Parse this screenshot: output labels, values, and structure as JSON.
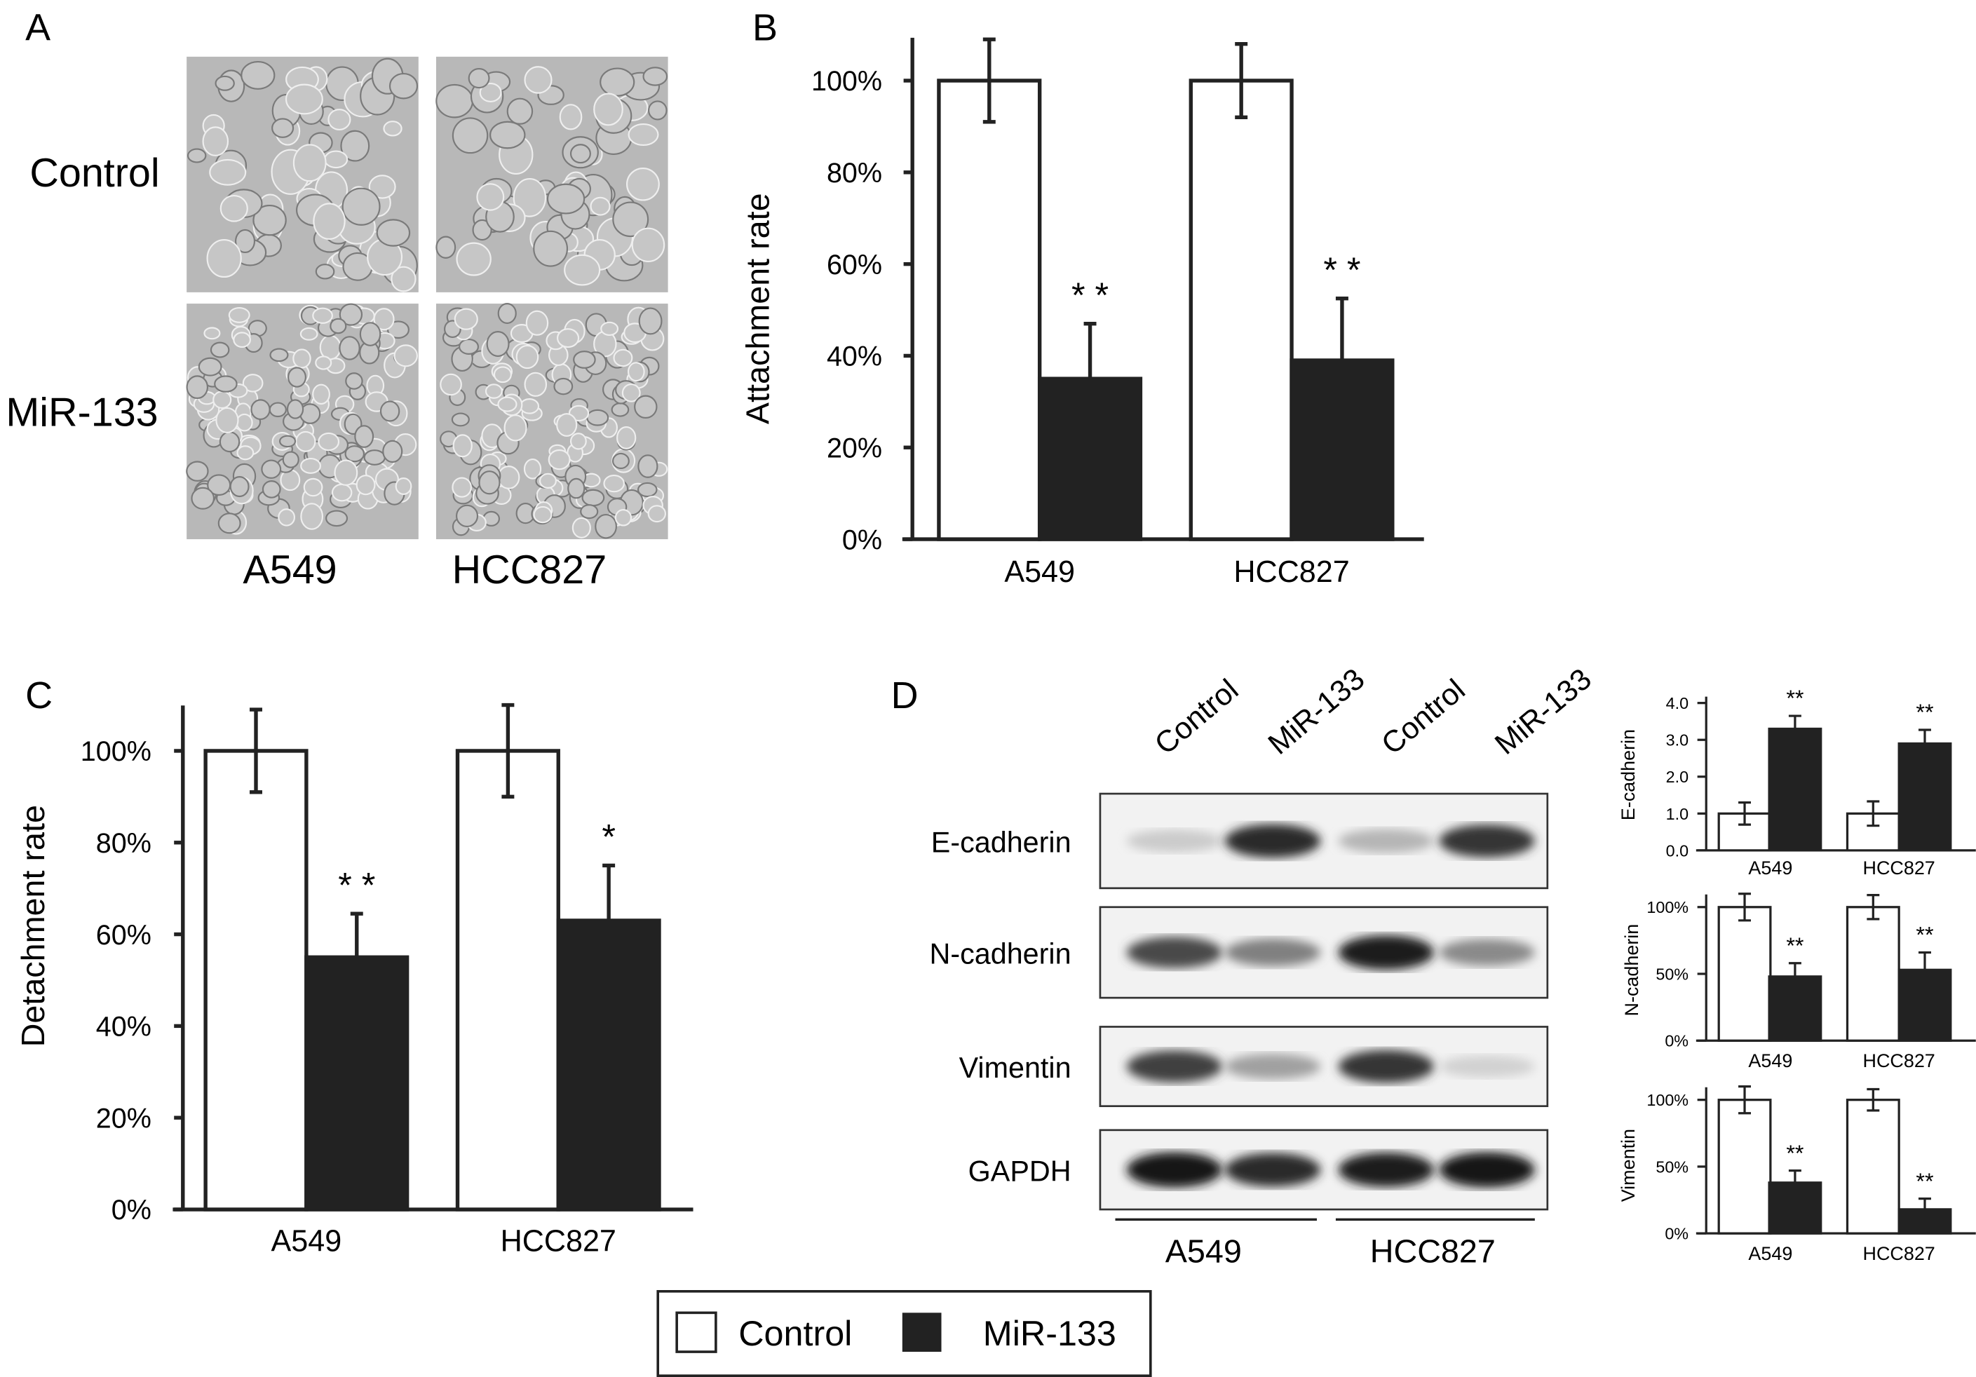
{
  "panels": {
    "a": "A",
    "b": "B",
    "c": "C",
    "d": "D"
  },
  "panel_a": {
    "row_labels": [
      "Control",
      "MiR-133"
    ],
    "col_labels": [
      "A549",
      "HCC827"
    ]
  },
  "blot": {
    "lane_labels": [
      "Control",
      "MiR-133",
      "Control",
      "MiR-133"
    ],
    "row_labels": [
      "E-cadherin",
      "N-cadherin",
      "Vimentin",
      "GAPDH"
    ],
    "group_labels": [
      "A549",
      "HCC827"
    ],
    "band_intensity": [
      [
        0.15,
        0.9,
        0.25,
        0.85
      ],
      [
        0.75,
        0.5,
        0.95,
        0.45
      ],
      [
        0.8,
        0.35,
        0.85,
        0.12
      ],
      [
        1.0,
        0.9,
        0.95,
        1.0
      ]
    ]
  },
  "legend": {
    "items": [
      "Control",
      "MiR-133"
    ]
  },
  "colors": {
    "control": "#ffffff",
    "mir133": "#222222",
    "axis": "#222222"
  },
  "chart_data": [
    {
      "id": "B",
      "type": "bar",
      "ylabel": "Attachment  rate",
      "categories": [
        "A549",
        "HCC827"
      ],
      "yticks": [
        "0%",
        "20%",
        "40%",
        "60%",
        "80%",
        "100%"
      ],
      "ylim": [
        0,
        110
      ],
      "series": [
        {
          "name": "Control",
          "values": [
            100,
            100
          ],
          "errors": [
            9,
            8
          ]
        },
        {
          "name": "MiR-133",
          "values": [
            35,
            39
          ],
          "errors": [
            12,
            13.5
          ]
        }
      ],
      "annotations": [
        "* *",
        "* *"
      ]
    },
    {
      "id": "C",
      "type": "bar",
      "ylabel": "Detachment rate",
      "categories": [
        "A549",
        "HCC827"
      ],
      "yticks": [
        "0%",
        "20%",
        "40%",
        "60%",
        "80%",
        "100%"
      ],
      "ylim": [
        0,
        110
      ],
      "series": [
        {
          "name": "Control",
          "values": [
            100,
            100
          ],
          "errors": [
            9,
            10
          ]
        },
        {
          "name": "MiR-133",
          "values": [
            55,
            63
          ],
          "errors": [
            9.5,
            12
          ]
        }
      ],
      "annotations": [
        "* *",
        "*"
      ]
    },
    {
      "id": "D-E-cadherin",
      "type": "bar",
      "ylabel": "E-cadherin",
      "categories": [
        "A549",
        "HCC827"
      ],
      "yticks": [
        "0.0",
        "1.0",
        "2.0",
        "3.0",
        "4.0"
      ],
      "ylim": [
        0,
        4
      ],
      "series": [
        {
          "name": "Control",
          "values": [
            1.0,
            1.0
          ],
          "errors": [
            0.3,
            0.33
          ]
        },
        {
          "name": "MiR-133",
          "values": [
            3.3,
            2.9
          ],
          "errors": [
            0.35,
            0.37
          ]
        }
      ],
      "annotations": [
        "**",
        "**"
      ]
    },
    {
      "id": "D-N-cadherin",
      "type": "bar",
      "ylabel": "N-cadherin",
      "categories": [
        "A549",
        "HCC827"
      ],
      "yticks": [
        "0%",
        "50%",
        "100%"
      ],
      "ylim": [
        0,
        110
      ],
      "series": [
        {
          "name": "Control",
          "values": [
            100,
            100
          ],
          "errors": [
            10,
            9
          ]
        },
        {
          "name": "MiR-133",
          "values": [
            48,
            53
          ],
          "errors": [
            10,
            13
          ]
        }
      ],
      "annotations": [
        "**",
        "**"
      ]
    },
    {
      "id": "D-Vimentin",
      "type": "bar",
      "ylabel": "Vimentin",
      "categories": [
        "A549",
        "HCC827"
      ],
      "yticks": [
        "0%",
        "50%",
        "100%"
      ],
      "ylim": [
        0,
        110
      ],
      "series": [
        {
          "name": "Control",
          "values": [
            100,
            100
          ],
          "errors": [
            10,
            8
          ]
        },
        {
          "name": "MiR-133",
          "values": [
            38,
            18
          ],
          "errors": [
            9,
            8
          ]
        }
      ],
      "annotations": [
        "**",
        "**"
      ]
    }
  ]
}
